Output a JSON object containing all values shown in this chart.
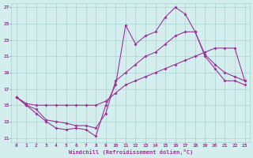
{
  "xlabel": "Windchill (Refroidissement éolien,°C)",
  "bg_color": "#d4eeed",
  "grid_color": "#a8d4d0",
  "line_color": "#993399",
  "xlim_min": -0.5,
  "xlim_max": 23.5,
  "ylim_min": 10.5,
  "ylim_max": 27.5,
  "xticks": [
    0,
    1,
    2,
    3,
    4,
    5,
    6,
    7,
    8,
    9,
    10,
    11,
    12,
    13,
    14,
    15,
    16,
    17,
    18,
    19,
    20,
    21,
    22,
    23
  ],
  "yticks": [
    11,
    13,
    15,
    17,
    19,
    21,
    23,
    25,
    27
  ],
  "line1_x": [
    0,
    1,
    2,
    3,
    4,
    5,
    6,
    7,
    8,
    9,
    10,
    11,
    12,
    13,
    14,
    15,
    16,
    17,
    18,
    19,
    20,
    21,
    22,
    23
  ],
  "line1_y": [
    16.0,
    15.0,
    14.0,
    13.0,
    12.2,
    12.0,
    12.2,
    12.0,
    11.2,
    15.0,
    17.5,
    24.8,
    22.5,
    23.5,
    24.0,
    25.8,
    27.0,
    26.2,
    24.0,
    21.0,
    19.5,
    18.0,
    18.0,
    17.5
  ],
  "line2_x": [
    0,
    1,
    2,
    3,
    4,
    5,
    6,
    7,
    8,
    9,
    10,
    11,
    12,
    13,
    14,
    15,
    16,
    17,
    18,
    19,
    20,
    21,
    22,
    23
  ],
  "line2_y": [
    16.0,
    15.0,
    14.5,
    13.2,
    13.0,
    12.8,
    12.5,
    12.5,
    12.2,
    14.0,
    18.0,
    19.0,
    20.0,
    21.0,
    21.5,
    22.5,
    23.5,
    24.0,
    24.0,
    21.2,
    20.0,
    19.0,
    18.5,
    18.0
  ],
  "line3_x": [
    0,
    1,
    2,
    3,
    4,
    5,
    6,
    7,
    8,
    9,
    10,
    11,
    12,
    13,
    14,
    15,
    16,
    17,
    18,
    19,
    20,
    21,
    22,
    23
  ],
  "line3_y": [
    16.0,
    15.2,
    15.0,
    15.0,
    15.0,
    15.0,
    15.0,
    15.0,
    15.0,
    15.5,
    16.5,
    17.5,
    18.0,
    18.5,
    19.0,
    19.5,
    20.0,
    20.5,
    21.0,
    21.5,
    22.0,
    22.0,
    22.0,
    18.0
  ]
}
